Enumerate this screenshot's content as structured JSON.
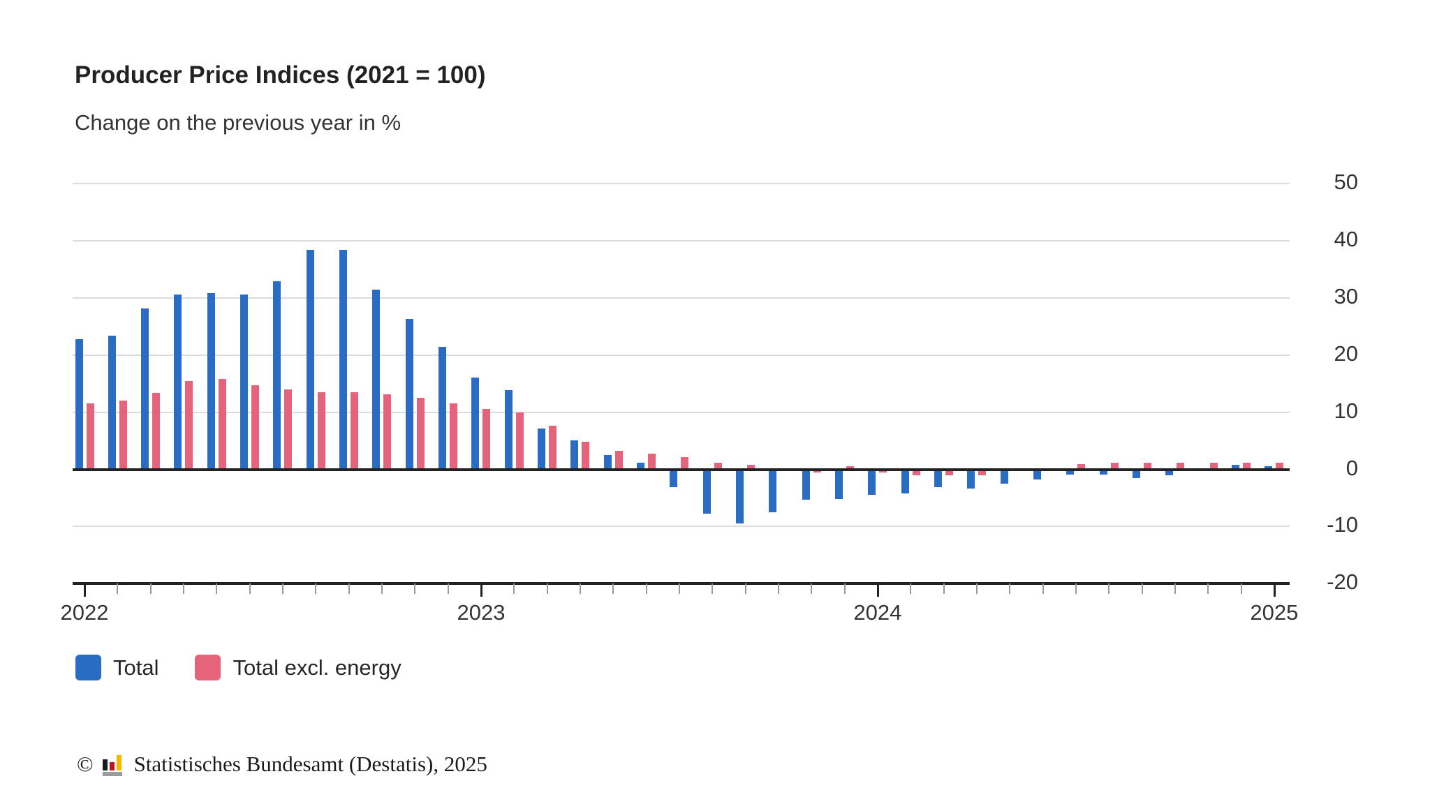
{
  "title": "Producer Price Indices (2021 = 100)",
  "subtitle": "Change on the previous year in %",
  "legend": {
    "items": [
      {
        "label": "Total",
        "color": "#2a6cc4"
      },
      {
        "label": "Total excl. energy",
        "color": "#e5637b"
      }
    ]
  },
  "source": {
    "copyright_symbol": "©",
    "logo": "destatis-bar-chart-logo",
    "text": "Statistisches Bundesamt (Destatis), 2025"
  },
  "colors": {
    "total": "#2a6cc4",
    "excl_energy": "#e5637b",
    "gridline": "#dcdcdc",
    "axis": "#222222",
    "text": "#333333"
  },
  "chart_data": {
    "type": "bar",
    "title": "Producer Price Indices (2021 = 100)",
    "subtitle": "Change on the previous year in %",
    "ylabel": "Change on the previous year in %",
    "ylim": [
      -20,
      50
    ],
    "yticks": [
      50,
      40,
      30,
      20,
      10,
      0,
      -10,
      -20
    ],
    "grid": "horizontal",
    "legend_position": "bottom",
    "y_axis_side": "right",
    "x": [
      "2022-01",
      "2022-02",
      "2022-03",
      "2022-04",
      "2022-05",
      "2022-06",
      "2022-07",
      "2022-08",
      "2022-09",
      "2022-10",
      "2022-11",
      "2022-12",
      "2023-01",
      "2023-02",
      "2023-03",
      "2023-04",
      "2023-05",
      "2023-06",
      "2023-07",
      "2023-08",
      "2023-09",
      "2023-10",
      "2023-11",
      "2023-12",
      "2024-01",
      "2024-02",
      "2024-03",
      "2024-04",
      "2024-05",
      "2024-06",
      "2024-07",
      "2024-08",
      "2024-09",
      "2024-10",
      "2024-11",
      "2024-12",
      "2025-01"
    ],
    "year_labels": [
      {
        "label": "2022",
        "month_index": 0
      },
      {
        "label": "2023",
        "month_index": 12
      },
      {
        "label": "2024",
        "month_index": 24
      },
      {
        "label": "2025",
        "month_index": 36
      }
    ],
    "series": [
      {
        "name": "Total",
        "color": "#2a6cc4",
        "values": [
          22.8,
          23.4,
          28.2,
          30.6,
          30.9,
          30.6,
          32.9,
          38.4,
          38.4,
          31.5,
          26.3,
          21.5,
          16.1,
          13.9,
          7.2,
          5.1,
          2.5,
          1.2,
          -3.1,
          -7.8,
          -9.5,
          -7.5,
          -5.3,
          -5.2,
          -4.4,
          -4.2,
          -3.1,
          -3.4,
          -2.5,
          -1.8,
          -0.9,
          -0.9,
          -1.5,
          -1.0,
          -0.1,
          0.8,
          0.5
        ]
      },
      {
        "name": "Total excl. energy",
        "color": "#e5637b",
        "values": [
          11.6,
          12.0,
          13.4,
          15.4,
          15.8,
          14.7,
          14.0,
          13.5,
          13.5,
          13.1,
          12.5,
          11.6,
          10.6,
          9.9,
          7.6,
          4.8,
          3.2,
          2.8,
          2.1,
          1.1,
          0.8,
          0.2,
          -0.5,
          0.6,
          -0.6,
          -1.0,
          -1.0,
          -1.0,
          -0.3,
          -0.2,
          0.9,
          1.2,
          1.1,
          1.2,
          1.1,
          1.2,
          1.2
        ]
      }
    ]
  }
}
